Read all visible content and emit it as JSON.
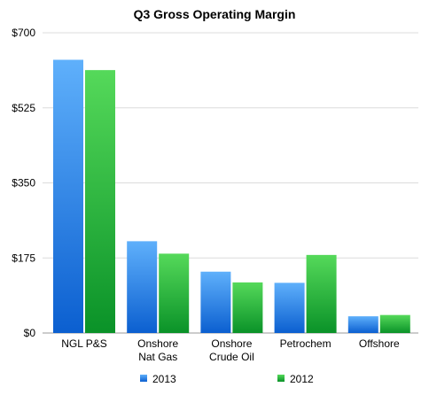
{
  "chart_data": {
    "type": "bar",
    "title": "Q3 Gross Operating Margin",
    "categories": [
      "NGL P&S",
      "Onshore\nNat Gas",
      "Onshore\nCrude Oil",
      "Petrochem",
      "Offshore"
    ],
    "series": [
      {
        "name": "2013",
        "values": [
          637,
          214,
          143,
          117,
          39
        ],
        "color": "#2f86e6"
      },
      {
        "name": "2012",
        "values": [
          613,
          185,
          118,
          182,
          42
        ],
        "color": "#1fb43c"
      }
    ],
    "ylim": [
      0,
      700
    ],
    "yticks": [
      0,
      175,
      350,
      525,
      700
    ],
    "ytick_labels": [
      "$0",
      "$175",
      "$350",
      "$525",
      "$700"
    ],
    "xlabel": "",
    "ylabel": "",
    "grid": true,
    "legend_position": "bottom"
  }
}
